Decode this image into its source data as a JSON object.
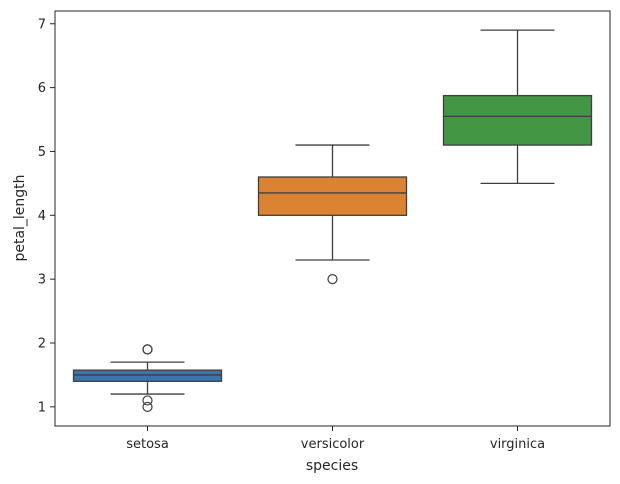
{
  "chart_data": {
    "type": "box",
    "title": "",
    "xlabel": "species",
    "ylabel": "petal_length",
    "ylim": [
      0.7,
      7.2
    ],
    "yticks": [
      1,
      2,
      3,
      4,
      5,
      6,
      7
    ],
    "grid": false,
    "legend": "none",
    "categories": [
      "setosa",
      "versicolor",
      "virginica"
    ],
    "series": [
      {
        "category": "setosa",
        "color": "#3a75af",
        "whisker_low": 1.2,
        "q1": 1.4,
        "median": 1.5,
        "q3": 1.575,
        "whisker_high": 1.7,
        "outliers": [
          1.9,
          1.9,
          1.1,
          1.0
        ]
      },
      {
        "category": "versicolor",
        "color": "#db8333",
        "whisker_low": 3.3,
        "q1": 4.0,
        "median": 4.35,
        "q3": 4.6,
        "whisker_high": 5.1,
        "outliers": [
          3.0
        ]
      },
      {
        "category": "virginica",
        "color": "#439643",
        "whisker_low": 4.5,
        "q1": 5.1,
        "median": 5.55,
        "q3": 5.875,
        "whisker_high": 6.9,
        "outliers": []
      }
    ]
  }
}
